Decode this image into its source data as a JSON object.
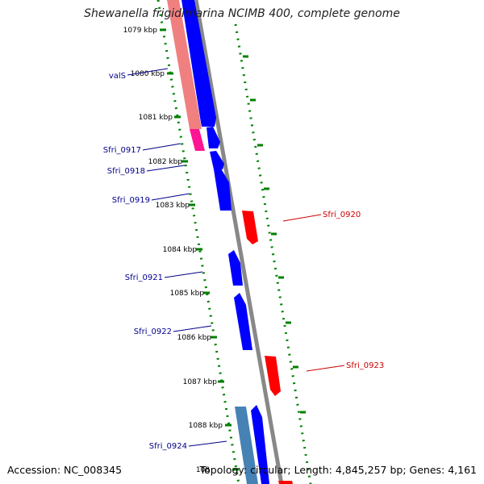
{
  "title": "Shewanella frigidimarina NCIMB 400, complete genome",
  "accession": "Accession: NC_008345",
  "summary": "Topology: circular; Length: 4,845,257 bp; Genes: 4,161",
  "ticks": [
    "1079 kbp",
    "1080 kbp",
    "1081 kbp",
    "1082 kbp",
    "1083 kbp",
    "1084 kbp",
    "1085 kbp",
    "1086 kbp",
    "1087 kbp",
    "1088 kbp",
    "108"
  ],
  "genes_left": [
    "valS",
    "Sfri_0917",
    "Sfri_0918",
    "Sfri_0919",
    "Sfri_0921",
    "Sfri_0922",
    "Sfri_0924"
  ],
  "genes_right": [
    "Sfri_0920",
    "Sfri_0923"
  ],
  "colors": {
    "forward_cds": "#0000ff",
    "reverse_cds": "#ff0000",
    "gene_forward": "#f08080",
    "gene_trna": "#ff1493",
    "gene_other": "#4682b4",
    "backbone": "#888888",
    "ruler": "#008000",
    "label_forward": "#00008b",
    "label_reverse": "#cc0000"
  }
}
